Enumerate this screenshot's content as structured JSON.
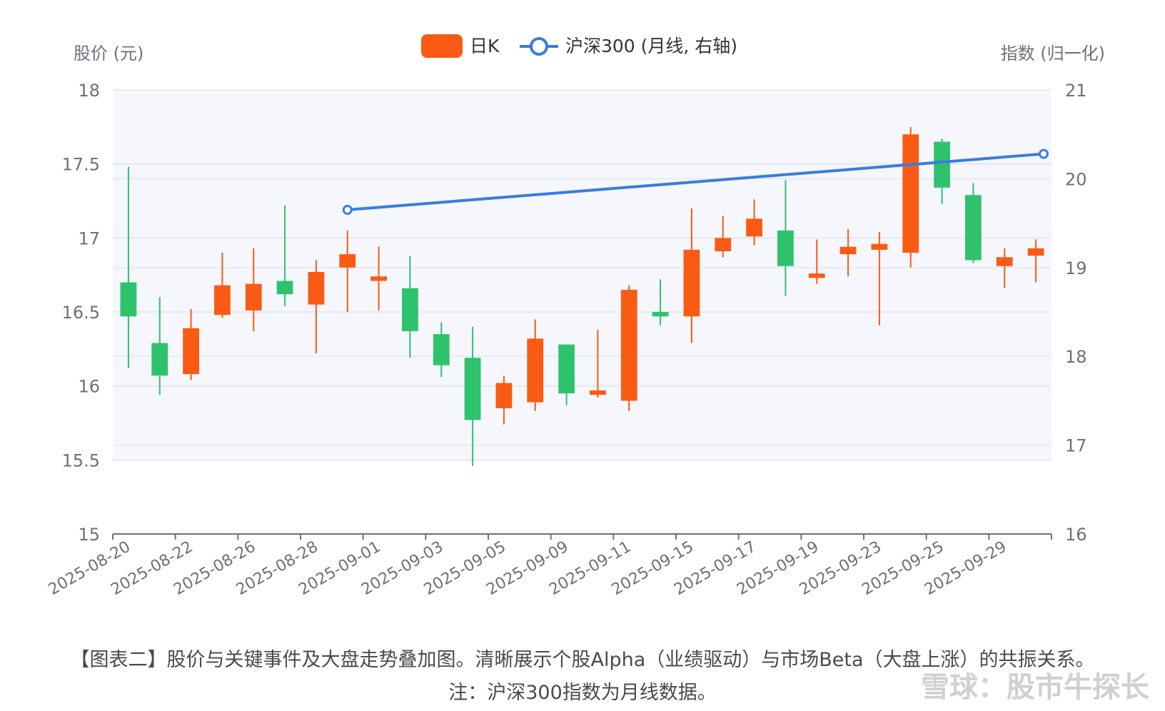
{
  "chart_data": {
    "type": "candlestick",
    "legend": [
      {
        "name": "日K",
        "color": "#fa5b14"
      },
      {
        "name": "沪深300 (月线, 右轴)",
        "color": "#3a7be0"
      }
    ],
    "legend_position": "top-center",
    "y_left": {
      "label": "股价 (元)",
      "min": 15,
      "max": 18,
      "ticks": [
        "15",
        "15.5",
        "16",
        "16.5",
        "17",
        "17.5",
        "18"
      ]
    },
    "y_right": {
      "label": "指数 (归一化)",
      "min": 16,
      "max": 21,
      "ticks": [
        "16",
        "17",
        "18",
        "19",
        "20",
        "21"
      ]
    },
    "x_tick_labels": [
      "2025-08-20",
      "2025-08-22",
      "2025-08-26",
      "2025-08-28",
      "2025-09-01",
      "2025-09-03",
      "2025-09-05",
      "2025-09-09",
      "2025-09-11",
      "2025-09-15",
      "2025-09-17",
      "2025-09-19",
      "2025-09-23",
      "2025-09-25",
      "2025-09-29"
    ],
    "up_color": "#fa5b14",
    "down_color": "#2fc26d",
    "candles": [
      {
        "open": 16.7,
        "close": 16.47,
        "low": 16.12,
        "high": 17.48
      },
      {
        "open": 16.29,
        "close": 16.07,
        "low": 15.94,
        "high": 16.6
      },
      {
        "open": 16.08,
        "close": 16.39,
        "low": 16.04,
        "high": 16.52
      },
      {
        "open": 16.48,
        "close": 16.68,
        "low": 16.46,
        "high": 16.9
      },
      {
        "open": 16.51,
        "close": 16.69,
        "low": 16.37,
        "high": 16.93
      },
      {
        "open": 16.71,
        "close": 16.62,
        "low": 16.54,
        "high": 17.22
      },
      {
        "open": 16.55,
        "close": 16.77,
        "low": 16.22,
        "high": 16.85
      },
      {
        "open": 16.8,
        "close": 16.89,
        "low": 16.5,
        "high": 17.05
      },
      {
        "open": 16.71,
        "close": 16.74,
        "low": 16.51,
        "high": 16.94
      },
      {
        "open": 16.66,
        "close": 16.37,
        "low": 16.19,
        "high": 16.88
      },
      {
        "open": 16.35,
        "close": 16.14,
        "low": 16.06,
        "high": 16.43
      },
      {
        "open": 16.19,
        "close": 15.77,
        "low": 15.46,
        "high": 16.4
      },
      {
        "open": 15.85,
        "close": 16.02,
        "low": 15.74,
        "high": 16.07
      },
      {
        "open": 15.89,
        "close": 16.32,
        "low": 15.83,
        "high": 16.45
      },
      {
        "open": 16.28,
        "close": 15.95,
        "low": 15.87,
        "high": 16.28
      },
      {
        "open": 15.94,
        "close": 15.97,
        "low": 15.92,
        "high": 16.38
      },
      {
        "open": 15.9,
        "close": 16.65,
        "low": 15.83,
        "high": 16.68
      },
      {
        "open": 16.5,
        "close": 16.47,
        "low": 16.41,
        "high": 16.72
      },
      {
        "open": 16.47,
        "close": 16.92,
        "low": 16.29,
        "high": 17.2
      },
      {
        "open": 16.91,
        "close": 17.0,
        "low": 16.87,
        "high": 17.15
      },
      {
        "open": 17.01,
        "close": 17.13,
        "low": 16.95,
        "high": 17.26
      },
      {
        "open": 17.05,
        "close": 16.81,
        "low": 16.61,
        "high": 17.39
      },
      {
        "open": 16.73,
        "close": 16.76,
        "low": 16.69,
        "high": 16.99
      },
      {
        "open": 16.89,
        "close": 16.94,
        "low": 16.74,
        "high": 17.06
      },
      {
        "open": 16.92,
        "close": 16.96,
        "low": 16.41,
        "high": 17.04
      },
      {
        "open": 16.9,
        "close": 17.7,
        "low": 16.8,
        "high": 17.75
      },
      {
        "open": 17.65,
        "close": 17.34,
        "low": 17.23,
        "high": 17.67
      },
      {
        "open": 17.29,
        "close": 16.85,
        "low": 16.83,
        "high": 17.37
      },
      {
        "open": 16.81,
        "close": 16.87,
        "low": 16.66,
        "high": 16.93
      },
      {
        "open": 16.88,
        "close": 16.93,
        "low": 16.7,
        "high": 16.99
      }
    ],
    "index_line": {
      "name": "沪深300 (月线, 右轴)",
      "points": [
        {
          "candle_index": 7,
          "value": 19.65
        },
        {
          "candle_index": 29.25,
          "value": 20.28
        }
      ]
    },
    "grid": true
  },
  "caption": {
    "line1": "【图表二】股价与关键事件及大盘走势叠加图。清晰展示个股Alpha（业绩驱动）与市场Beta（大盘上涨）的共振关系。",
    "line2": "注：沪深300指数为月线数据。"
  },
  "watermark": "雪球：股市牛探长"
}
